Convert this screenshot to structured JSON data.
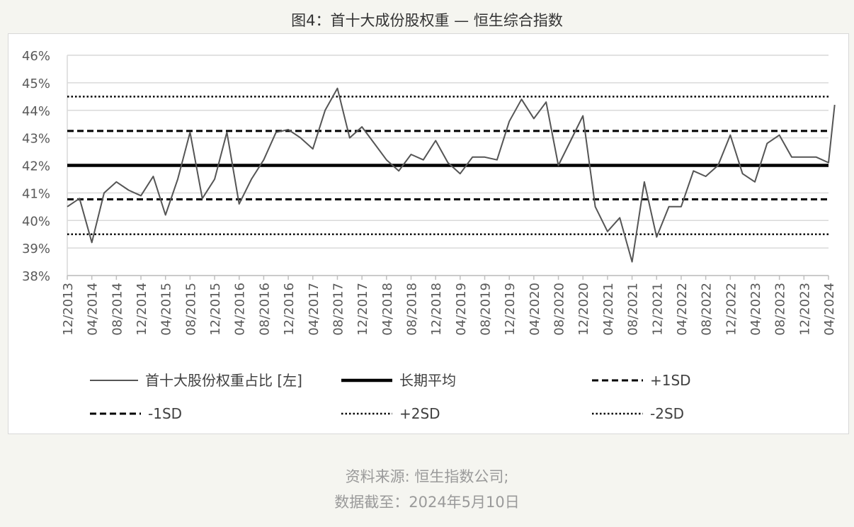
{
  "figure_title": "图4：首十大成份股权重 — 恒生综合指数",
  "source_line": "资料来源: 恒生指数公司;",
  "date_line": "数据截至：2024年5月10日",
  "colors": {
    "series": "#555555",
    "mean": "#000000",
    "sd": "#000000",
    "grid": "#d9d9d9",
    "background": "#f5f5f0"
  },
  "chart_data": {
    "type": "line",
    "title": "",
    "xlabel": "",
    "ylabel": "",
    "ylim": [
      38,
      46
    ],
    "y_ticks": [
      "38%",
      "39%",
      "40%",
      "41%",
      "42%",
      "43%",
      "44%",
      "45%",
      "46%"
    ],
    "x_ticks": [
      "12/2013",
      "04/2014",
      "08/2014",
      "12/2014",
      "04/2015",
      "08/2015",
      "12/2015",
      "04/2016",
      "08/2016",
      "12/2016",
      "04/2017",
      "08/2017",
      "12/2017",
      "04/2018",
      "08/2018",
      "12/2018",
      "04/2019",
      "08/2019",
      "12/2019",
      "04/2020",
      "08/2020",
      "12/2020",
      "04/2021",
      "08/2021",
      "12/2021",
      "04/2022",
      "08/2022",
      "12/2022",
      "04/2023",
      "08/2023",
      "12/2023",
      "04/2024"
    ],
    "grid": true,
    "legend_position": "bottom",
    "series": [
      {
        "name": "首十大股份权重占比 [左]",
        "style": "thin",
        "x": [
          "12/2013",
          "02/2014",
          "04/2014",
          "06/2014",
          "08/2014",
          "10/2014",
          "12/2014",
          "02/2015",
          "04/2015",
          "06/2015",
          "08/2015",
          "10/2015",
          "12/2015",
          "02/2016",
          "04/2016",
          "06/2016",
          "08/2016",
          "10/2016",
          "12/2016",
          "02/2017",
          "04/2017",
          "06/2017",
          "08/2017",
          "10/2017",
          "12/2017",
          "02/2018",
          "04/2018",
          "06/2018",
          "08/2018",
          "10/2018",
          "12/2018",
          "02/2019",
          "04/2019",
          "06/2019",
          "08/2019",
          "10/2019",
          "12/2019",
          "02/2020",
          "04/2020",
          "06/2020",
          "08/2020",
          "10/2020",
          "12/2020",
          "02/2021",
          "04/2021",
          "06/2021",
          "08/2021",
          "10/2021",
          "12/2021",
          "02/2022",
          "04/2022",
          "06/2022",
          "08/2022",
          "10/2022",
          "12/2022",
          "02/2023",
          "04/2023",
          "06/2023",
          "08/2023",
          "10/2023",
          "12/2023",
          "02/2024",
          "04/2024",
          "05/2024"
        ],
        "values": [
          40.5,
          40.8,
          39.2,
          41.0,
          41.4,
          41.1,
          40.9,
          41.6,
          40.2,
          41.5,
          43.2,
          40.8,
          41.5,
          43.2,
          40.6,
          41.5,
          42.2,
          43.2,
          43.3,
          43.0,
          42.6,
          44.0,
          44.8,
          43.0,
          43.4,
          42.8,
          42.2,
          41.8,
          42.4,
          42.2,
          42.9,
          42.1,
          41.7,
          42.3,
          42.3,
          42.2,
          43.6,
          44.4,
          43.7,
          44.3,
          42.0,
          42.9,
          43.8,
          40.5,
          39.6,
          40.1,
          38.5,
          41.4,
          39.4,
          40.5,
          40.5,
          41.8,
          41.6,
          42.0,
          43.1,
          41.7,
          41.4,
          42.8,
          43.1,
          42.3,
          42.3,
          42.3,
          42.1,
          44.2
        ]
      },
      {
        "name": "长期平均",
        "style": "thick",
        "constant": 42.0
      },
      {
        "name": "+1SD",
        "style": "dashed",
        "constant": 43.25
      },
      {
        "name": "-1SD",
        "style": "dashed",
        "constant": 40.77
      },
      {
        "name": "+2SD",
        "style": "dotted",
        "constant": 44.5
      },
      {
        "name": "-2SD",
        "style": "dotted",
        "constant": 39.5
      }
    ]
  }
}
